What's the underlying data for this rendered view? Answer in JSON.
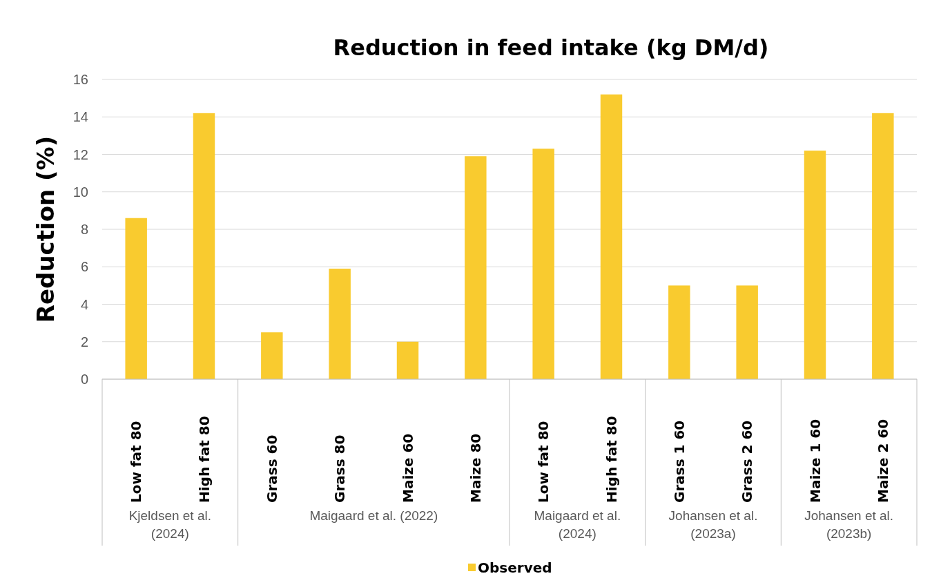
{
  "chart_data": {
    "type": "bar",
    "title": "Reduction in feed intake (kg DM/d)",
    "ylabel": "Reduction (%)",
    "categories": [
      "Low fat 80",
      "High fat 80",
      "Grass 60",
      "Grass 80",
      "Maize 60",
      "Maize 80",
      "Low fat 80",
      "High fat 80",
      "Grass 1 60",
      "Grass 2 60",
      "Maize 1 60",
      "Maize 2 60"
    ],
    "series": [
      {
        "name": "Observed",
        "color": "#f9cb2f",
        "values": [
          8.6,
          14.2,
          2.5,
          5.9,
          2.0,
          11.9,
          12.3,
          15.2,
          5.0,
          5.0,
          12.2,
          14.2
        ]
      }
    ],
    "ylim": [
      0,
      16
    ],
    "yticks": [
      0,
      2,
      4,
      6,
      8,
      10,
      12,
      14,
      16
    ],
    "grid": "y",
    "legend": "bottom",
    "annotations": [
      "Kjeldsen et al. (2024)",
      "Maigaard et al. (2022)",
      "Maigaard et al. (2024)",
      "Johansen et al. (2023a)",
      "Johansen et al. (2023b)"
    ]
  }
}
